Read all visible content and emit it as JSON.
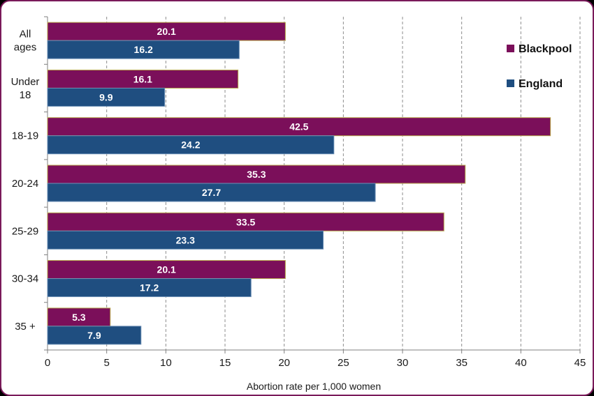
{
  "chart_data": {
    "type": "bar",
    "orientation": "horizontal",
    "categories": [
      [
        "All",
        "ages"
      ],
      [
        "Under",
        "18"
      ],
      [
        "18-19"
      ],
      [
        "20-24"
      ],
      [
        "25-29"
      ],
      [
        "30-34"
      ],
      [
        "35 +"
      ]
    ],
    "series": [
      {
        "name": "Blackpool",
        "color": "#7b0f5a",
        "values": [
          20.1,
          16.1,
          42.5,
          35.3,
          33.5,
          20.1,
          5.3
        ]
      },
      {
        "name": "England",
        "color": "#1f4e80",
        "values": [
          16.2,
          9.9,
          24.2,
          27.7,
          23.3,
          17.2,
          7.9
        ]
      }
    ],
    "xlabel": "Abortion rate per 1,000 women",
    "xlim": [
      0,
      45
    ],
    "xticks": [
      0,
      5,
      10,
      15,
      20,
      25,
      30,
      35,
      40,
      45
    ],
    "grid": "vertical dashed",
    "legend": "right"
  }
}
